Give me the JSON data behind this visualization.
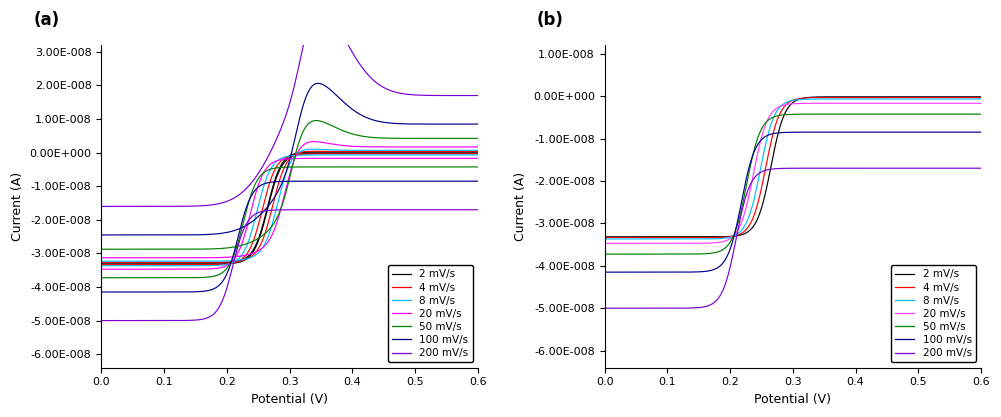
{
  "scan_rates": [
    2,
    4,
    8,
    20,
    50,
    100,
    200
  ],
  "colors_a": [
    "#000000",
    "#ff0000",
    "#00bfff",
    "#ff00ff",
    "#008000",
    "#00008b",
    "#7b00d4"
  ],
  "colors_b": [
    "#000000",
    "#ff0000",
    "#00bfff",
    "#ff40ff",
    "#008000",
    "#00008b",
    "#7b00d4"
  ],
  "legend_labels": [
    "2 mV/s",
    "4 mV/s",
    "8 mV/s",
    "20 mV/s",
    "50 mV/s",
    "100 mV/s",
    "200 mV/s"
  ],
  "xlabel": "Potential (V)",
  "ylabel": "Current (A)",
  "panel_a_label": "(a)",
  "panel_b_label": "(b)",
  "xlim": [
    0.0,
    0.6
  ],
  "ylim_a": [
    -6.4e-08,
    3.2e-08
  ],
  "ylim_b": [
    -6.4e-08,
    1.2e-08
  ],
  "yticks_a": [
    -6e-08,
    -5e-08,
    -4e-08,
    -3e-08,
    -2e-08,
    -1e-08,
    0.0,
    1e-08,
    2e-08,
    3e-08
  ],
  "yticks_b": [
    -6e-08,
    -5e-08,
    -4e-08,
    -3e-08,
    -2e-08,
    -1e-08,
    0.0,
    1e-08
  ],
  "E0": 0.265,
  "sigmoid_k": 90,
  "i_lim_base": -3.3e-08,
  "cap_scale": 8.5e-11,
  "dE_scale": 0.012,
  "peak_scale_fwd": 1.0,
  "figsize": [
    10.01,
    4.17
  ],
  "dpi": 100
}
